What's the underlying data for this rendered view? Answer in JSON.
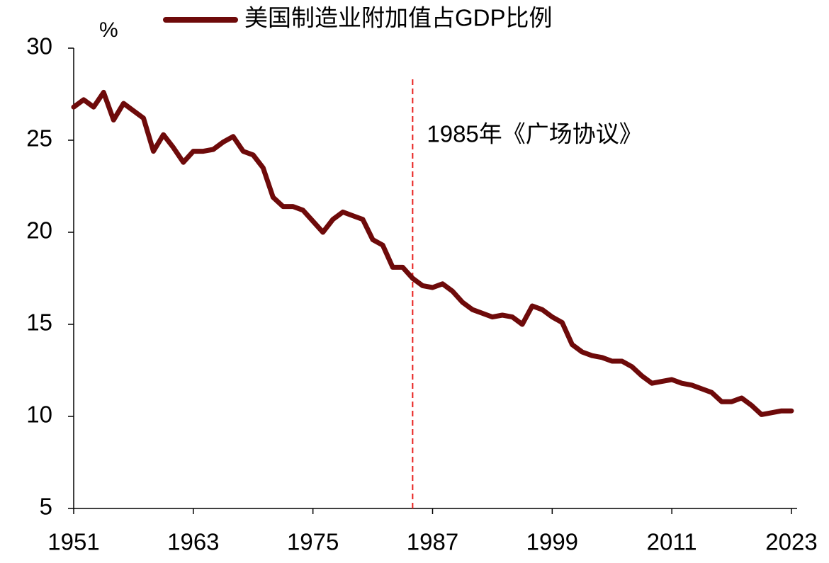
{
  "chart_data": {
    "type": "line",
    "y_axis_label": "%",
    "x": [
      1951,
      1952,
      1953,
      1954,
      1955,
      1956,
      1957,
      1958,
      1959,
      1960,
      1961,
      1962,
      1963,
      1964,
      1965,
      1966,
      1967,
      1968,
      1969,
      1970,
      1971,
      1972,
      1973,
      1974,
      1975,
      1976,
      1977,
      1978,
      1979,
      1980,
      1981,
      1982,
      1983,
      1984,
      1985,
      1986,
      1987,
      1988,
      1989,
      1990,
      1991,
      1992,
      1993,
      1994,
      1995,
      1996,
      1997,
      1998,
      1999,
      2000,
      2001,
      2002,
      2003,
      2004,
      2005,
      2006,
      2007,
      2008,
      2009,
      2010,
      2011,
      2012,
      2013,
      2014,
      2015,
      2016,
      2017,
      2018,
      2019,
      2020,
      2021,
      2022,
      2023
    ],
    "series": [
      {
        "name": "美国制造业附加值占GDP比例",
        "color": "#6e0a0a",
        "values": [
          26.8,
          27.2,
          26.8,
          27.6,
          26.1,
          27.0,
          26.6,
          26.2,
          24.4,
          25.3,
          24.6,
          23.8,
          24.4,
          24.4,
          24.5,
          24.9,
          25.2,
          24.4,
          24.2,
          23.5,
          21.9,
          21.4,
          21.4,
          21.2,
          20.6,
          20.0,
          20.7,
          21.1,
          20.9,
          20.7,
          19.6,
          19.3,
          18.1,
          18.1,
          17.5,
          17.1,
          17.0,
          17.2,
          16.8,
          16.2,
          15.8,
          15.6,
          15.4,
          15.5,
          15.4,
          15.0,
          16.0,
          15.8,
          15.4,
          15.1,
          13.9,
          13.5,
          13.3,
          13.2,
          13.0,
          13.0,
          12.7,
          12.2,
          11.8,
          11.9,
          12.0,
          11.8,
          11.7,
          11.5,
          11.3,
          10.8,
          10.8,
          11.0,
          10.6,
          10.1,
          10.2,
          10.3,
          10.3
        ]
      }
    ],
    "xlim": [
      1951,
      2023
    ],
    "xticks": [
      1951,
      1963,
      1975,
      1987,
      1999,
      2011,
      2023
    ],
    "ylim": [
      5,
      30
    ],
    "yticks": [
      5,
      10,
      15,
      20,
      25,
      30
    ],
    "annotations": [
      {
        "x": 1985,
        "text": "1985年《广场协议》",
        "color": "#e8201e"
      }
    ]
  }
}
